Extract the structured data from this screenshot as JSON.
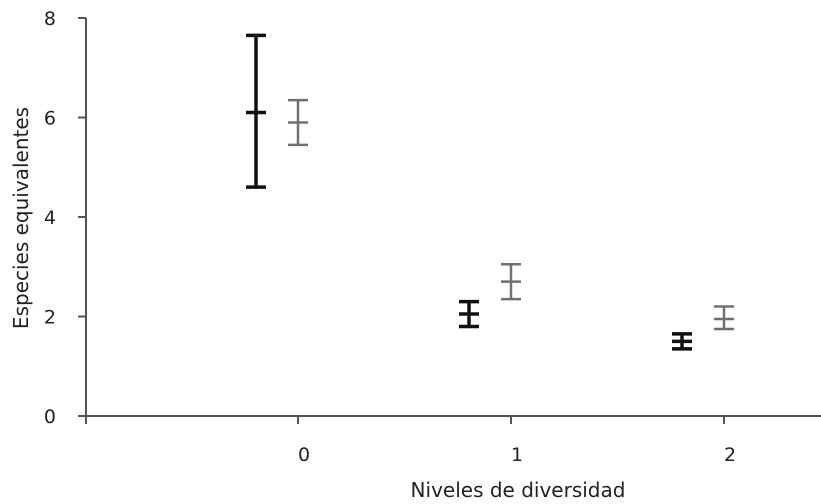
{
  "chart_data": {
    "type": "errorbar",
    "title": "",
    "xlabel": "Niveles de diversidad",
    "ylabel": "Especies equivalentes",
    "categories": [
      "0",
      "1",
      "2"
    ],
    "ylim": [
      0,
      8
    ],
    "yticks": [
      0,
      2,
      4,
      6,
      8
    ],
    "grid": false,
    "legend": "none",
    "series": [
      {
        "color": "#111111",
        "points": [
          {
            "category": "0",
            "mean": 6.1,
            "low": 4.6,
            "high": 7.65
          },
          {
            "category": "1",
            "mean": 2.05,
            "low": 1.8,
            "high": 2.3
          },
          {
            "category": "2",
            "mean": 1.5,
            "low": 1.35,
            "high": 1.65
          }
        ]
      },
      {
        "color": "#707070",
        "points": [
          {
            "category": "0",
            "mean": 5.9,
            "low": 5.45,
            "high": 6.35
          },
          {
            "category": "1",
            "mean": 2.7,
            "low": 2.35,
            "high": 3.05
          },
          {
            "category": "2",
            "mean": 1.95,
            "low": 1.75,
            "high": 2.2
          }
        ]
      }
    ]
  }
}
